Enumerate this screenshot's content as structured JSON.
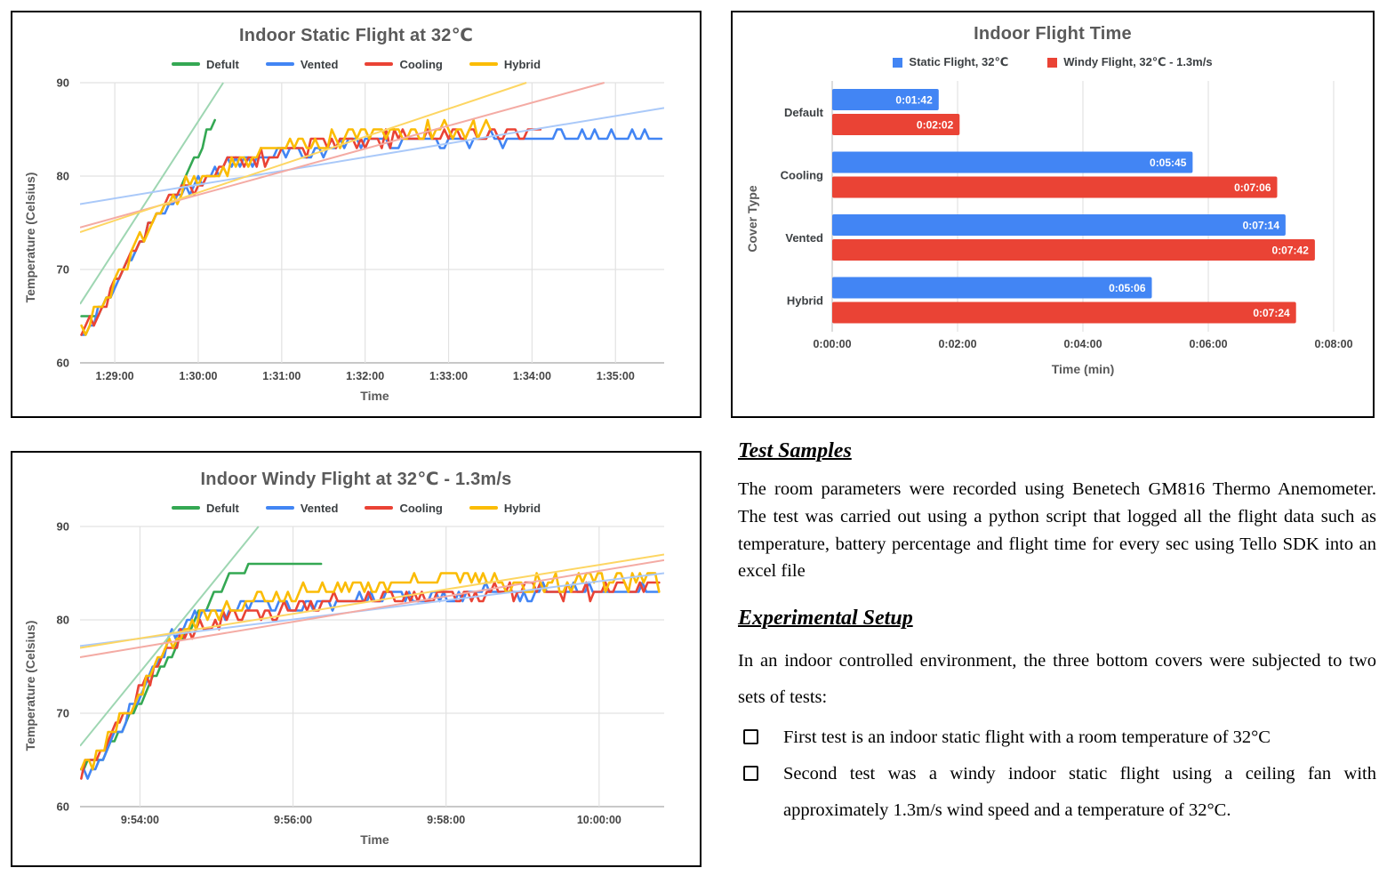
{
  "chart_data": [
    {
      "type": "line",
      "title": "Indoor Static Flight at 32℃",
      "xlabel": "Time",
      "ylabel": "Temperature (Celsius)",
      "ylim": [
        60,
        90
      ],
      "yticks": [
        60,
        70,
        80,
        90
      ],
      "xlim_seconds": [
        5315,
        5735
      ],
      "xticks": [
        {
          "t": 5340,
          "label": "1:29:00"
        },
        {
          "t": 5400,
          "label": "1:30:00"
        },
        {
          "t": 5460,
          "label": "1:31:00"
        },
        {
          "t": 5520,
          "label": "1:32:00"
        },
        {
          "t": 5580,
          "label": "1:33:00"
        },
        {
          "t": 5640,
          "label": "1:34:00"
        },
        {
          "t": 5700,
          "label": "1:35:00"
        }
      ],
      "grid": true,
      "legend_position": "top",
      "value_precision": "temperatures logged as whole degrees; jitter amplitude per series in noise",
      "series": [
        {
          "name": "Defult",
          "color": "#34A853",
          "trend_color": "#9ed6b2",
          "noise": 0.45,
          "points": [
            [
              5316,
              64.8
            ],
            [
              5322,
              65
            ],
            [
              5325,
              64.5
            ],
            [
              5335,
              67
            ],
            [
              5349,
              70.5
            ],
            [
              5363,
              74
            ],
            [
              5377,
              77
            ],
            [
              5389,
              79.5
            ],
            [
              5397,
              81.5
            ],
            [
              5403,
              83.5
            ],
            [
              5407,
              85
            ],
            [
              5410,
              85.8
            ],
            [
              5414,
              86
            ]
          ],
          "trendline": [
            [
              5315,
              66.3
            ],
            [
              5418,
              90
            ]
          ]
        },
        {
          "name": "Vented",
          "color": "#4285F4",
          "trend_color": "#aac9f9",
          "noise": 0.7,
          "points": [
            [
              5316,
              63.4
            ],
            [
              5319,
              63.2
            ],
            [
              5329,
              65.5
            ],
            [
              5343,
              69
            ],
            [
              5357,
              72.5
            ],
            [
              5371,
              75.5
            ],
            [
              5385,
              77.8
            ],
            [
              5399,
              79.4
            ],
            [
              5414,
              80.7
            ],
            [
              5434,
              81.7
            ],
            [
              5459,
              82.4
            ],
            [
              5489,
              83
            ],
            [
              5529,
              83.5
            ],
            [
              5569,
              83.9
            ],
            [
              5619,
              84.1
            ],
            [
              5679,
              84.2
            ],
            [
              5733,
              84.3
            ]
          ],
          "trendline": [
            [
              5315,
              77
            ],
            [
              5735,
              87.3
            ]
          ]
        },
        {
          "name": "Cooling",
          "color": "#EA4335",
          "trend_color": "#f4aba4",
          "noise": 0.8,
          "points": [
            [
              5316,
              63.2
            ],
            [
              5329,
              65.8
            ],
            [
              5343,
              69.2
            ],
            [
              5357,
              72.8
            ],
            [
              5371,
              75.8
            ],
            [
              5385,
              78
            ],
            [
              5399,
              79.3
            ],
            [
              5417,
              80.7
            ],
            [
              5439,
              81.9
            ],
            [
              5464,
              82.7
            ],
            [
              5494,
              83.4
            ],
            [
              5529,
              83.9
            ],
            [
              5569,
              84.4
            ],
            [
              5609,
              84.7
            ],
            [
              5647,
              84.9
            ]
          ],
          "trendline": [
            [
              5315,
              74.5
            ],
            [
              5692,
              90
            ]
          ]
        },
        {
          "name": "Hybrid",
          "color": "#FBBC04",
          "trend_color": "#fdd663",
          "noise": 0.9,
          "points": [
            [
              5316,
              63.3
            ],
            [
              5330,
              66
            ],
            [
              5344,
              69.4
            ],
            [
              5358,
              73
            ],
            [
              5372,
              76
            ],
            [
              5386,
              78.2
            ],
            [
              5400,
              79.6
            ],
            [
              5419,
              81.1
            ],
            [
              5441,
              82.3
            ],
            [
              5465,
              83.1
            ],
            [
              5495,
              83.9
            ],
            [
              5529,
              84.5
            ],
            [
              5564,
              84.9
            ],
            [
              5612,
              85.1
            ]
          ],
          "trendline": [
            [
              5315,
              74
            ],
            [
              5636,
              90
            ]
          ]
        }
      ]
    },
    {
      "type": "bar",
      "title": "Indoor Flight Time",
      "xlabel": "Time (min)",
      "ylabel": "Cover Type",
      "orientation": "horizontal",
      "categories": [
        "Default",
        "Cooling",
        "Vented",
        "Hybrid"
      ],
      "xlim": [
        0,
        480
      ],
      "xticks": [
        {
          "v": 0,
          "label": "0:00:00"
        },
        {
          "v": 120,
          "label": "0:02:00"
        },
        {
          "v": 240,
          "label": "0:04:00"
        },
        {
          "v": 360,
          "label": "0:06:00"
        },
        {
          "v": 480,
          "label": "0:08:00"
        }
      ],
      "grid": true,
      "legend_position": "top",
      "series": [
        {
          "name": "Static Flight, 32℃",
          "color": "#4285F4",
          "values_seconds": [
            102,
            345,
            434,
            306
          ],
          "labels": [
            "0:01:42",
            "0:05:45",
            "0:07:14",
            "0:05:06"
          ]
        },
        {
          "name": "Windy Flight, 32℃ - 1.3m/s",
          "color": "#EA4335",
          "values_seconds": [
            122,
            426,
            462,
            444
          ],
          "labels": [
            "0:02:02",
            "0:07:06",
            "0:07:42",
            "0:07:24"
          ]
        }
      ]
    },
    {
      "type": "line",
      "title": "Indoor Windy Flight at 32℃ - 1.3m/s",
      "xlabel": "Time",
      "ylabel": "Temperature (Celsius)",
      "ylim": [
        60,
        90
      ],
      "yticks": [
        60,
        70,
        80,
        90
      ],
      "xlim_seconds": [
        35593,
        36051
      ],
      "xticks": [
        {
          "t": 35640,
          "label": "9:54:00"
        },
        {
          "t": 35760,
          "label": "9:56:00"
        },
        {
          "t": 35880,
          "label": "9:58:00"
        },
        {
          "t": 36000,
          "label": "10:00:00"
        }
      ],
      "grid": true,
      "legend_position": "top",
      "value_precision": "temperatures logged as whole degrees; jitter amplitude per series in noise",
      "series": [
        {
          "name": "Defult",
          "color": "#34A853",
          "trend_color": "#9ed6b2",
          "noise": 0.4,
          "points": [
            [
              35596,
              64.8
            ],
            [
              35603,
              65
            ],
            [
              35606,
              64.5
            ],
            [
              35617,
              66.5
            ],
            [
              35631,
              69.5
            ],
            [
              35645,
              72.5
            ],
            [
              35659,
              75.5
            ],
            [
              35671,
              77.8
            ],
            [
              35683,
              80
            ],
            [
              35695,
              82
            ],
            [
              35705,
              83.5
            ],
            [
              35713,
              84.8
            ],
            [
              35721,
              85.6
            ],
            [
              35735,
              86
            ],
            [
              35783,
              86
            ]
          ],
          "trendline": [
            [
              35593,
              66.5
            ],
            [
              35733,
              90
            ]
          ]
        },
        {
          "name": "Vented",
          "color": "#4285F4",
          "trend_color": "#aac9f9",
          "noise": 0.7,
          "points": [
            [
              35593,
              64
            ],
            [
              35597,
              63.5
            ],
            [
              35601,
              63.6
            ],
            [
              35611,
              65.5
            ],
            [
              35624,
              68.5
            ],
            [
              35639,
              72
            ],
            [
              35651,
              75
            ],
            [
              35662,
              77.5
            ],
            [
              35672,
              79.3
            ],
            [
              35684,
              80.4
            ],
            [
              35699,
              81
            ],
            [
              35719,
              81.3
            ],
            [
              35749,
              81.5
            ],
            [
              35789,
              82
            ],
            [
              35829,
              82.3
            ],
            [
              35869,
              82.7
            ],
            [
              35909,
              83
            ],
            [
              35949,
              83
            ],
            [
              35989,
              83.1
            ],
            [
              36029,
              83.2
            ],
            [
              36048,
              83.4
            ]
          ],
          "trendline": [
            [
              35593,
              77.2
            ],
            [
              36051,
              85
            ]
          ]
        },
        {
          "name": "Cooling",
          "color": "#EA4335",
          "trend_color": "#f4aba4",
          "noise": 0.8,
          "points": [
            [
              35594,
              63.6
            ],
            [
              35605,
              65
            ],
            [
              35619,
              67.8
            ],
            [
              35634,
              71
            ],
            [
              35649,
              74
            ],
            [
              35661,
              76.5
            ],
            [
              35674,
              78.3
            ],
            [
              35689,
              79.5
            ],
            [
              35709,
              80.3
            ],
            [
              35739,
              81
            ],
            [
              35779,
              81.9
            ],
            [
              35819,
              82.3
            ],
            [
              35859,
              82.7
            ],
            [
              35899,
              83
            ],
            [
              35939,
              83.1
            ],
            [
              35979,
              83.2
            ],
            [
              36019,
              83.3
            ],
            [
              36048,
              83.7
            ]
          ],
          "trendline": [
            [
              35593,
              76
            ],
            [
              36051,
              86.4
            ]
          ]
        },
        {
          "name": "Hybrid",
          "color": "#FBBC04",
          "trend_color": "#fdd663",
          "noise": 0.9,
          "points": [
            [
              35594,
              64.3
            ],
            [
              35600,
              64.5
            ],
            [
              35611,
              66
            ],
            [
              35625,
              69
            ],
            [
              35639,
              72.3
            ],
            [
              35653,
              75.3
            ],
            [
              35665,
              77.5
            ],
            [
              35677,
              79
            ],
            [
              35691,
              80.3
            ],
            [
              35709,
              81.4
            ],
            [
              35729,
              82.2
            ],
            [
              35759,
              82.7
            ],
            [
              35799,
              83.2
            ],
            [
              35839,
              83.9
            ],
            [
              35869,
              84.5
            ],
            [
              35889,
              84.7
            ],
            [
              35909,
              84.2
            ],
            [
              35939,
              83.8
            ],
            [
              35969,
              83.8
            ],
            [
              35999,
              84
            ],
            [
              36048,
              84.1
            ]
          ],
          "trendline": [
            [
              35593,
              77
            ],
            [
              36051,
              87
            ]
          ]
        }
      ]
    }
  ],
  "notes": {
    "bullet_icon": "square-checkbox-icon",
    "sections": [
      {
        "heading": "Test Samples",
        "paragraphs": [
          "The room parameters were recorded using Benetech GM816 Thermo Anemometer. The test was carried out using a python script that logged all the flight data such as temperature, battery percentage and flight time for every sec using Tello SDK into an excel file"
        ],
        "bullets": []
      },
      {
        "heading": "Experimental Setup",
        "paragraphs": [
          "In an indoor controlled environment, the three bottom covers were subjected to two sets of tests:"
        ],
        "bullets": [
          "First test is an indoor static flight with a room temperature of 32°C",
          "Second test was a windy indoor static flight using a ceiling fan with approximately 1.3m/s wind speed and a temperature of 32°C."
        ]
      }
    ]
  }
}
